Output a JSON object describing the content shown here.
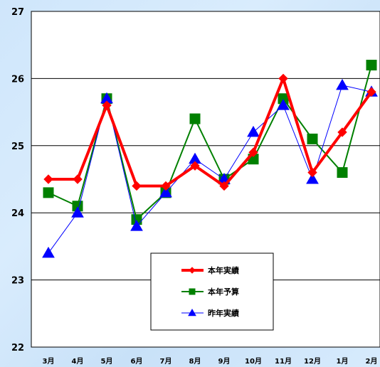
{
  "chart_data": {
    "type": "line",
    "categories": [
      "3月",
      "4月",
      "5月",
      "6月",
      "7月",
      "8月",
      "9月",
      "10月",
      "11月",
      "12月",
      "1月",
      "2月"
    ],
    "y_ticks": [
      "22",
      "23",
      "24",
      "25",
      "26",
      "27"
    ],
    "ylim": [
      22,
      27
    ],
    "grid": true,
    "legend_position": "bottom-center",
    "series": [
      {
        "name": "本年実績",
        "color": "#ff0000",
        "marker": "diamond",
        "values": [
          24.5,
          24.5,
          25.6,
          24.4,
          24.4,
          24.7,
          24.4,
          24.9,
          26.0,
          24.6,
          25.2,
          25.8
        ]
      },
      {
        "name": "本年予算",
        "color": "#008000",
        "marker": "square",
        "values": [
          24.3,
          24.1,
          25.7,
          23.9,
          24.3,
          25.4,
          24.5,
          24.8,
          25.7,
          25.1,
          24.6,
          26.2
        ]
      },
      {
        "name": "昨年実績",
        "color": "#0000ff",
        "marker": "triangle",
        "values": [
          23.4,
          24.0,
          25.7,
          23.8,
          24.3,
          24.8,
          24.5,
          25.2,
          25.6,
          24.5,
          25.9,
          25.8
        ]
      }
    ]
  }
}
